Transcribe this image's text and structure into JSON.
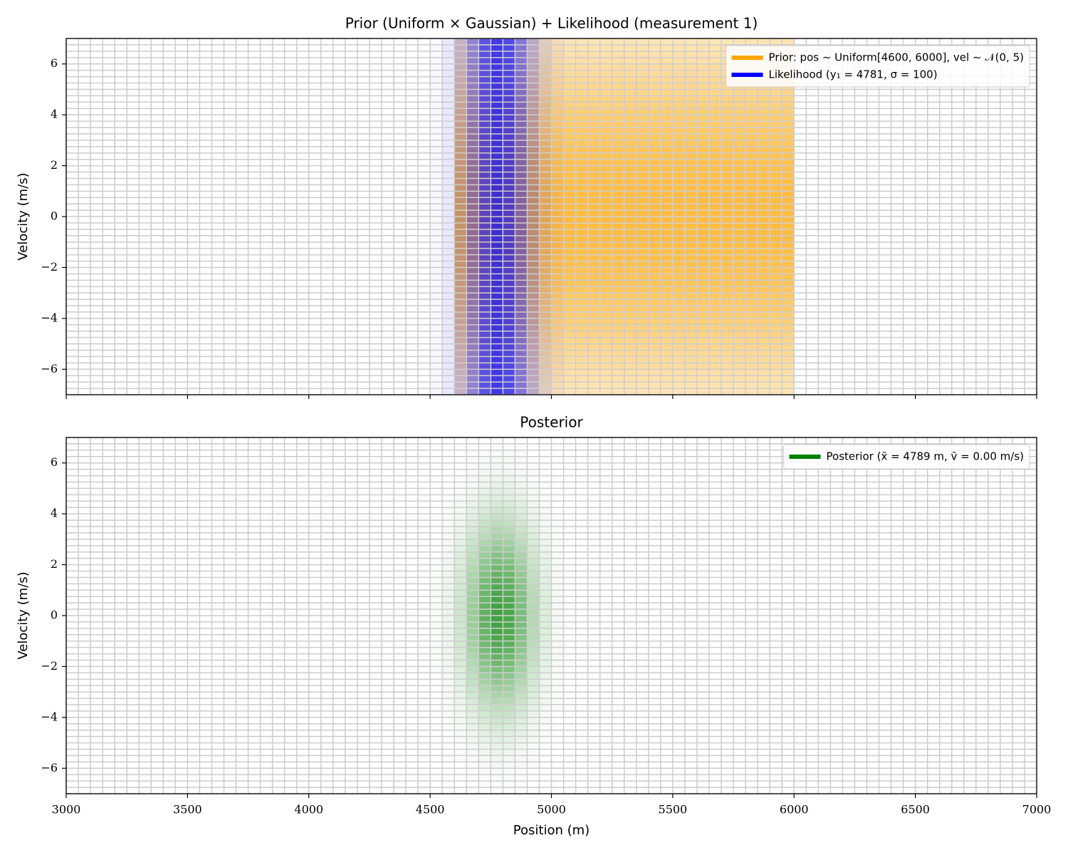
{
  "chart_data": [
    {
      "type": "heatmap",
      "title": "Prior (Uniform × Gaussian) + Likelihood (measurement 1)",
      "ylabel": "Velocity (m/s)",
      "xlim": [
        3000,
        7000
      ],
      "xticks": [
        3000,
        3500,
        4000,
        4500,
        5000,
        5500,
        6000,
        6500,
        7000
      ],
      "xtick_labels": false,
      "ylim": [
        -7,
        7
      ],
      "yticks": [
        {
          "value": -6,
          "label": "−6"
        },
        {
          "value": -4,
          "label": "−4"
        },
        {
          "value": -2,
          "label": "−2"
        },
        0,
        2,
        4,
        6
      ],
      "grid_step": [
        50,
        0.25
      ],
      "legend": "upper right",
      "series": [
        {
          "name": "Prior: pos ∼ Uniform[4600, 6000], vel ∼ 𝒩(0, 5)",
          "color": "orange",
          "pos_range": [
            4600,
            6000
          ],
          "vel_mean": 0,
          "vel_sd": 5
        },
        {
          "name": "Likelihood (y₁ = 4781, σ = 100)",
          "color": "blue",
          "pos_mean": 4781,
          "pos_sd": 100
        }
      ]
    },
    {
      "type": "heatmap",
      "title": "Posterior",
      "xlabel": "Position (m)",
      "ylabel": "Velocity (m/s)",
      "xlim": [
        3000,
        7000
      ],
      "xticks": [
        3000,
        3500,
        4000,
        4500,
        5000,
        5500,
        6000,
        6500,
        7000
      ],
      "xtick_labels": true,
      "ylim": [
        -7,
        7
      ],
      "yticks": [
        {
          "value": -6,
          "label": "−6"
        },
        {
          "value": -4,
          "label": "−4"
        },
        {
          "value": -2,
          "label": "−2"
        },
        0,
        2,
        4,
        6
      ],
      "grid_step": [
        50,
        0.25
      ],
      "legend": "upper right",
      "series": [
        {
          "name": "Posterior (x̄ = 4789 m, v̄ = 0.00 m/s)",
          "color": "green",
          "pos_mean": 4789,
          "pos_sd": 100,
          "vel_mean": 0,
          "vel_sd": 2.5
        }
      ]
    }
  ]
}
